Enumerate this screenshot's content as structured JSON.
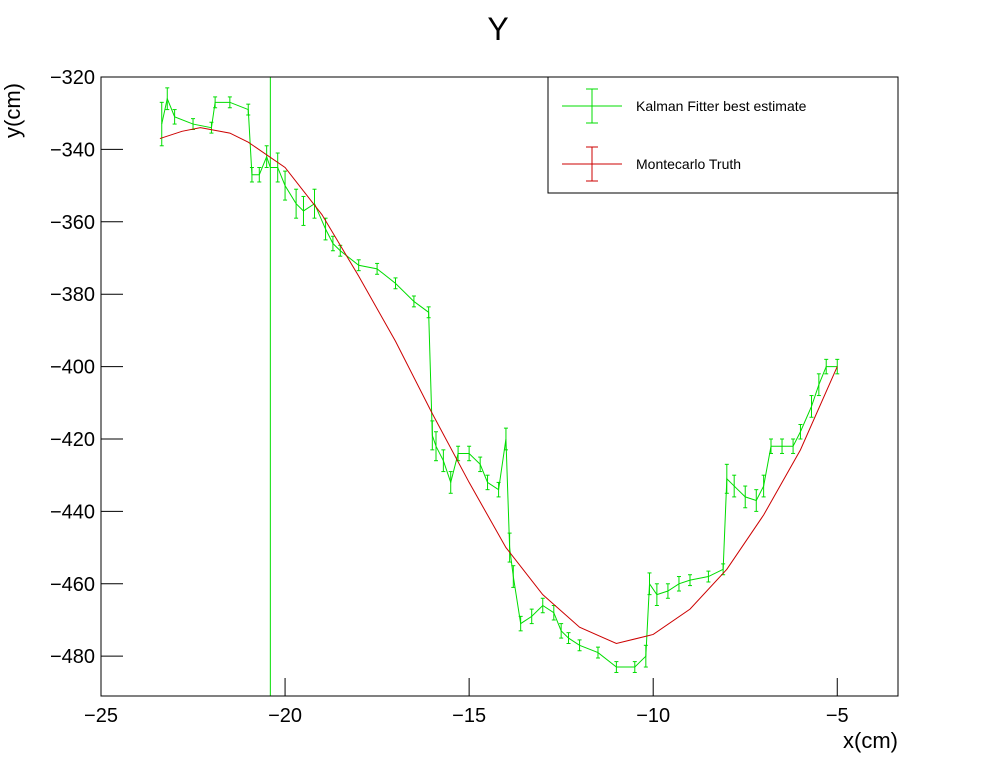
{
  "chart_data": {
    "type": "line",
    "title": "Y",
    "x_label": "x(cm)",
    "y_label": "y(cm)",
    "xlim": [
      -25,
      -3.35
    ],
    "ylim": [
      -491,
      -320
    ],
    "xticks": [
      {
        "value": -25,
        "label": "−25"
      },
      {
        "value": -20,
        "label": "−20"
      },
      {
        "value": -15,
        "label": "−15"
      },
      {
        "value": -10,
        "label": "−10"
      },
      {
        "value": -5,
        "label": "−5"
      }
    ],
    "yticks": [
      {
        "value": -320,
        "label": "−320"
      },
      {
        "value": -340,
        "label": "−340"
      },
      {
        "value": -360,
        "label": "−360"
      },
      {
        "value": -380,
        "label": "−380"
      },
      {
        "value": -400,
        "label": "−400"
      },
      {
        "value": -420,
        "label": "−420"
      },
      {
        "value": -440,
        "label": "−440"
      },
      {
        "value": -460,
        "label": "−460"
      },
      {
        "value": -480,
        "label": "−480"
      }
    ],
    "legend": "top-right",
    "series": [
      {
        "name": "Kalman Fitter best estimate",
        "color": "#00dd00",
        "x": [
          -23.35,
          -23.2,
          -23.0,
          -22.5,
          -22.0,
          -21.9,
          -21.5,
          -21.0,
          -20.9,
          -20.7,
          -20.5,
          -20.4,
          -20.2,
          -20.0,
          -19.7,
          -19.5,
          -19.2,
          -18.9,
          -18.7,
          -18.5,
          -18.0,
          -17.5,
          -17.0,
          -16.5,
          -16.1,
          -16.0,
          -15.9,
          -15.7,
          -15.5,
          -15.3,
          -15.0,
          -14.7,
          -14.5,
          -14.2,
          -14.0,
          -13.9,
          -13.8,
          -13.6,
          -13.3,
          -13.0,
          -12.7,
          -12.5,
          -12.3,
          -12.0,
          -11.5,
          -11.0,
          -10.5,
          -10.2,
          -10.1,
          -9.9,
          -9.6,
          -9.3,
          -9.0,
          -8.5,
          -8.1,
          -8.0,
          -7.8,
          -7.5,
          -7.2,
          -7.0,
          -6.8,
          -6.5,
          -6.2,
          -6.0,
          -5.7,
          -5.5,
          -5.3,
          -5.0
        ],
        "values": [
          -333,
          -326,
          -331,
          -333,
          -334,
          -327,
          -327,
          -329,
          -347,
          -347,
          -342,
          -345,
          -345,
          -350,
          -355,
          -357,
          -355,
          -362,
          -366,
          -368,
          -372,
          -373,
          -377,
          -382,
          -385,
          -419,
          -422,
          -426,
          -432,
          -424,
          -424,
          -427,
          -432,
          -434,
          -420,
          -450,
          -458,
          -471,
          -469,
          -466,
          -468,
          -473,
          -475,
          -477,
          -479,
          -483,
          -483,
          -480,
          -460,
          -463,
          -462,
          -460,
          -459,
          -458,
          -456,
          -431,
          -433,
          -436,
          -437,
          -433,
          -422,
          -422,
          -422,
          -418,
          -411,
          -405,
          -400,
          -400
        ],
        "errors": [
          6,
          3,
          2,
          1.5,
          1.5,
          1.5,
          1.5,
          1.5,
          2,
          2,
          3,
          150,
          4,
          4,
          4,
          4,
          4,
          3,
          2,
          1.5,
          1.5,
          1.5,
          1.5,
          1.5,
          1.5,
          4,
          4,
          3,
          3,
          2,
          2,
          2,
          2,
          2,
          3,
          4,
          3,
          2,
          2,
          2,
          2,
          2,
          1.5,
          1.5,
          1.5,
          1.5,
          1.5,
          3,
          3,
          3,
          2,
          2,
          1.5,
          1.5,
          1.5,
          4,
          3,
          3,
          3,
          3,
          2,
          2,
          2,
          2,
          3,
          3,
          2,
          2
        ]
      },
      {
        "name": "Montecarlo Truth",
        "color": "#cc0000",
        "x": [
          -23.4,
          -22.8,
          -22.3,
          -21.5,
          -21.0,
          -20.0,
          -19.0,
          -18.0,
          -17.0,
          -16.0,
          -15.0,
          -14.0,
          -13.0,
          -12.0,
          -11.0,
          -10.0,
          -9.0,
          -8.0,
          -7.0,
          -6.0,
          -5.0
        ],
        "values": [
          -337,
          -335,
          -334,
          -335.5,
          -338,
          -345,
          -358,
          -375,
          -393,
          -413,
          -432,
          -450,
          -463,
          -472,
          -476.5,
          -474,
          -467,
          -456,
          -441,
          -423,
          -400
        ]
      }
    ]
  }
}
